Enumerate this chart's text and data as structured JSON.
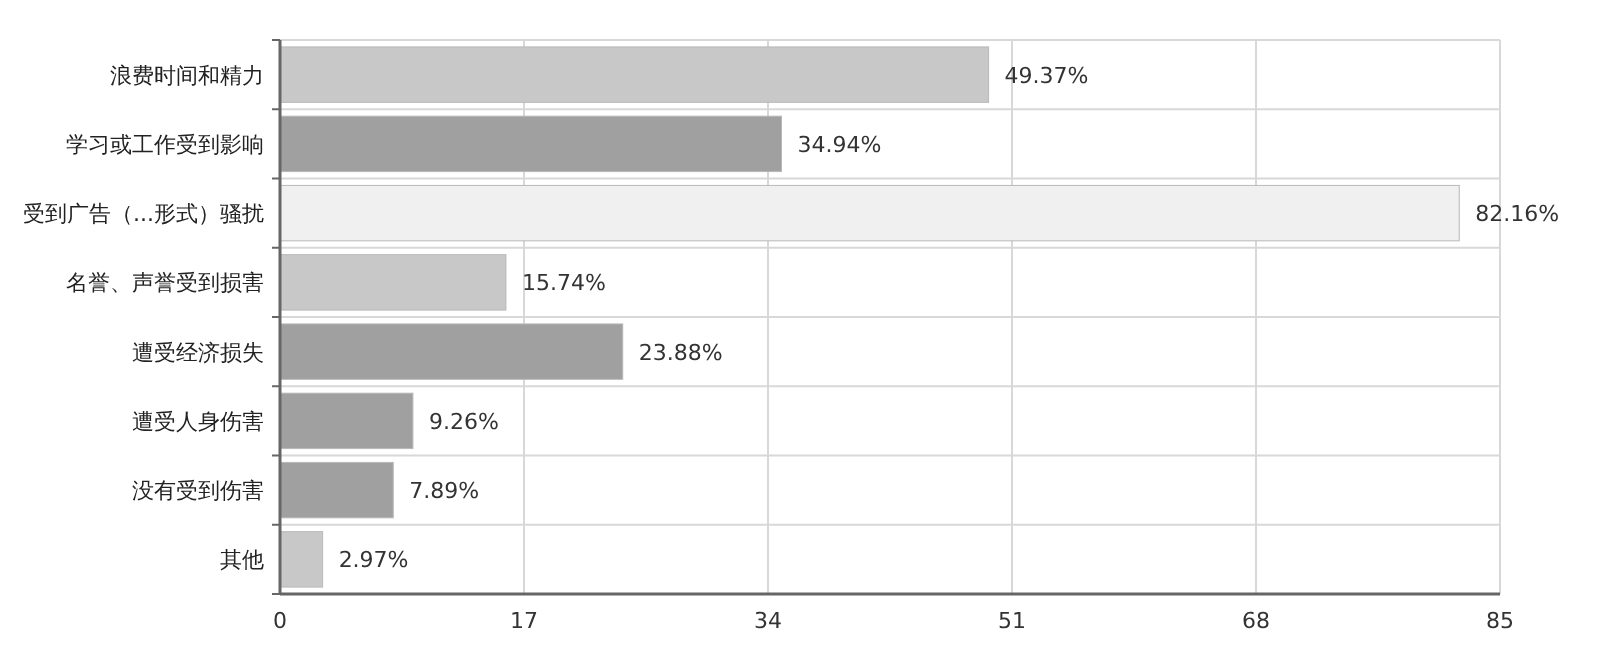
{
  "chart_data": {
    "type": "bar",
    "orientation": "horizontal",
    "categories": [
      "浪费时间和精力",
      "学习或工作受到影响",
      "受到广告（...形式）骚扰",
      "名誉、声誉受到损害",
      "遭受经济损失",
      "遭受人身伤害",
      "没有受到伤害",
      "其他"
    ],
    "values": [
      49.37,
      34.94,
      82.16,
      15.74,
      23.88,
      9.26,
      7.89,
      2.97
    ],
    "colors": [
      "#c8c8c8",
      "#a0a0a0",
      "#f0f0f0",
      "#c8c8c8",
      "#a0a0a0",
      "#a0a0a0",
      "#a0a0a0",
      "#c8c8c8"
    ],
    "value_labels": [
      "49.37%",
      "34.94%",
      "82.16%",
      "15.74%",
      "23.88%",
      "9.26%",
      "7.89%",
      "2.97%"
    ],
    "xlim": [
      0,
      85
    ],
    "xticks": [
      0,
      17,
      34,
      51,
      68,
      85
    ],
    "grid": true
  }
}
